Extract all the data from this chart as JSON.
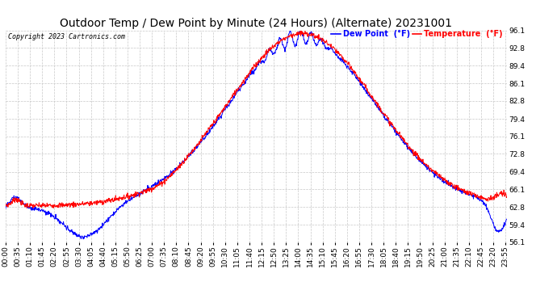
{
  "title": "Outdoor Temp / Dew Point by Minute (24 Hours) (Alternate) 20231001",
  "copyright": "Copyright 2023 Cartronics.com",
  "legend_dew": "Dew Point  (°F)",
  "legend_temp": "Temperature  (°F)",
  "dew_color": "#0000ff",
  "temp_color": "#ff0000",
  "bg_color": "#ffffff",
  "grid_color": "#c8c8c8",
  "ylim": [
    56.1,
    96.1
  ],
  "yticks": [
    56.1,
    59.4,
    62.8,
    66.1,
    69.4,
    72.8,
    76.1,
    79.4,
    82.8,
    86.1,
    89.4,
    92.8,
    96.1
  ],
  "title_fontsize": 10,
  "tick_fontsize": 6.5,
  "figsize": [
    6.9,
    3.75
  ],
  "dpi": 100
}
